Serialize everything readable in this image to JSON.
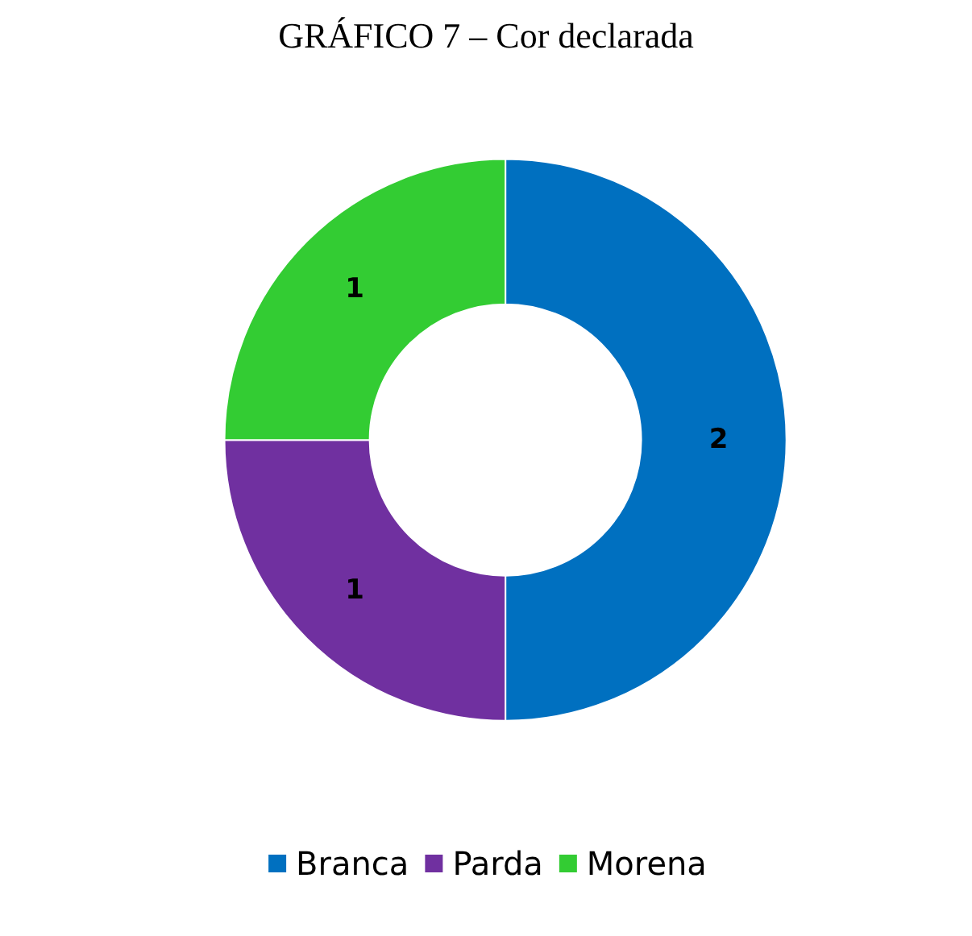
{
  "chart_data": {
    "type": "donut",
    "title": "GRÁFICO 7 – Cor declarada",
    "categories": [
      "Branca",
      "Parda",
      "Morena"
    ],
    "values": [
      2,
      1,
      1
    ],
    "colors": [
      "#0070c0",
      "#7030a0",
      "#33cc33"
    ],
    "data_labels": true,
    "legend": "bottom"
  }
}
